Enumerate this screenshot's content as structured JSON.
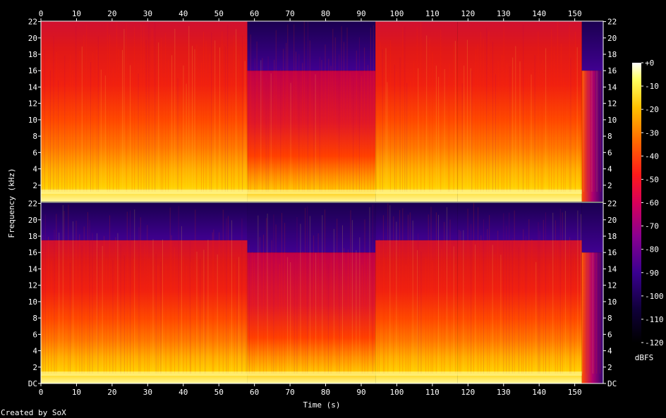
{
  "chart_data": {
    "type": "heatmap",
    "xlabel": "Time (s)",
    "ylabel": "Frequency (kHz)",
    "colorbar_label": "dBFS",
    "credit": "Created by SoX",
    "x_ticks": [
      "0",
      "10",
      "20",
      "30",
      "40",
      "50",
      "60",
      "70",
      "80",
      "90",
      "100",
      "110",
      "120",
      "130",
      "140",
      "150"
    ],
    "xlim": [
      0,
      158
    ],
    "y_ticks_top": [
      "2",
      "4",
      "6",
      "8",
      "10",
      "12",
      "14",
      "16",
      "18",
      "20",
      "22"
    ],
    "y_ticks_bottom": [
      "DC",
      "2",
      "4",
      "6",
      "8",
      "10",
      "12",
      "14",
      "16",
      "18",
      "20",
      "22"
    ],
    "ylim_khz": [
      0,
      22.05
    ],
    "colorbar_ticks": [
      "+0",
      "-10",
      "-20",
      "-30",
      "-40",
      "-50",
      "-60",
      "-70",
      "-80",
      "-90",
      "-100",
      "-110",
      "-120"
    ],
    "colorbar_range_dbfs": [
      -120,
      0
    ],
    "channels": [
      {
        "segments": [
          {
            "t_start": 0,
            "t_end": 58,
            "cutoff_khz": 22,
            "level": "loud"
          },
          {
            "t_start": 58,
            "t_end": 94,
            "cutoff_khz": 16,
            "level": "medium"
          },
          {
            "t_start": 94,
            "t_end": 117,
            "cutoff_khz": 22,
            "level": "loud"
          },
          {
            "t_start": 117,
            "t_end": 152,
            "cutoff_khz": 22,
            "level": "loud"
          },
          {
            "t_start": 152,
            "t_end": 158,
            "cutoff_khz": 16,
            "level": "fade"
          }
        ]
      },
      {
        "segments": [
          {
            "t_start": 0,
            "t_end": 58,
            "cutoff_khz": 17.5,
            "level": "loud"
          },
          {
            "t_start": 58,
            "t_end": 94,
            "cutoff_khz": 16,
            "level": "medium"
          },
          {
            "t_start": 94,
            "t_end": 117,
            "cutoff_khz": 17.5,
            "level": "loud"
          },
          {
            "t_start": 117,
            "t_end": 152,
            "cutoff_khz": 17.5,
            "level": "loud"
          },
          {
            "t_start": 152,
            "t_end": 158,
            "cutoff_khz": 16,
            "level": "fade"
          }
        ]
      }
    ]
  }
}
